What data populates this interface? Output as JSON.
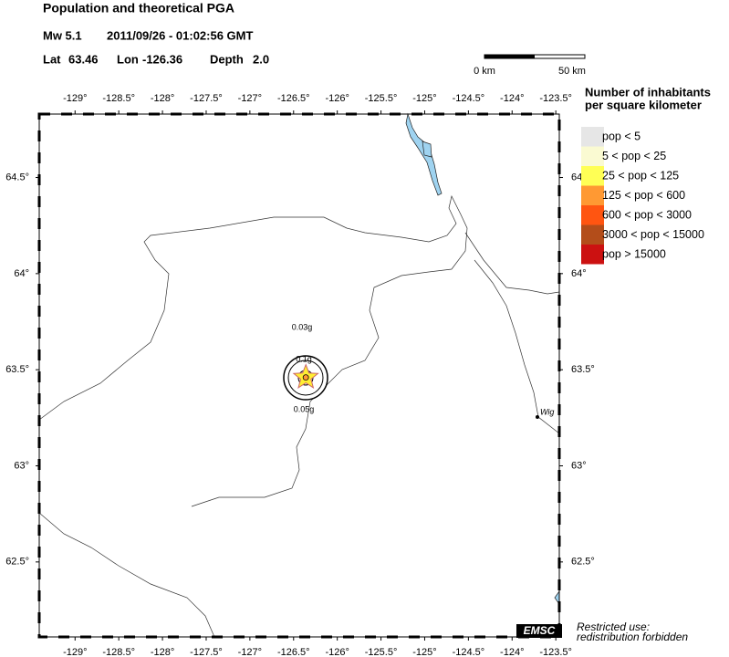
{
  "header": {
    "title": "Population and theoretical PGA",
    "magnitude": "Mw 5.1",
    "datetime": "2011/09/26 - 01:02:56 GMT"
  },
  "epicenter": {
    "lat_label": "Lat",
    "lat": 63.46,
    "lon_label": "Lon",
    "lon": -126.36,
    "depth_label": "Depth",
    "depth": "2.0"
  },
  "scale_bar": {
    "start": "0 km",
    "end": "50 km"
  },
  "map": {
    "xlim": [
      -129.41,
      -123.46
    ],
    "ylim": [
      62.11,
      64.83
    ],
    "xticks": [
      {
        "value": -129,
        "label": "-129°"
      },
      {
        "value": -128.5,
        "label": "-128.5°"
      },
      {
        "value": -128,
        "label": "-128°"
      },
      {
        "value": -127.5,
        "label": "-127.5°"
      },
      {
        "value": -127,
        "label": "-127°"
      },
      {
        "value": -126.5,
        "label": "-126.5°"
      },
      {
        "value": -126,
        "label": "-126°"
      },
      {
        "value": -125.5,
        "label": "-125.5°"
      },
      {
        "value": -125,
        "label": "-125°"
      },
      {
        "value": -124.5,
        "label": "-124.5°"
      },
      {
        "value": -124,
        "label": "-124°"
      },
      {
        "value": -123.5,
        "label": "-123.5°"
      }
    ],
    "yticks": [
      {
        "value": 64.5,
        "label": "64.5°"
      },
      {
        "value": 64,
        "label": "64°"
      },
      {
        "value": 63.5,
        "label": "63.5°"
      },
      {
        "value": 63,
        "label": "63°"
      },
      {
        "value": 62.5,
        "label": "62.5°"
      }
    ],
    "pga_labels": [
      "0.03g",
      "0.1g",
      "0.05g"
    ],
    "town": "Wig"
  },
  "legend": {
    "title_line1": "Number of inhabitants",
    "title_line2": "per square kilometer",
    "items": [
      {
        "label": "pop < 5",
        "color": "#e6e6e6"
      },
      {
        "label": "5 < pop < 25",
        "color": "#fafad2"
      },
      {
        "label": "25 < pop < 125",
        "color": "#ffff55"
      },
      {
        "label": "125 < pop < 600",
        "color": "#ff9933"
      },
      {
        "label": "600 < pop < 3000",
        "color": "#ff5511"
      },
      {
        "label": "3000 < pop < 15000",
        "color": "#b34d1a"
      },
      {
        "label": "pop > 15000",
        "color": "#cc1111"
      }
    ]
  },
  "footer": {
    "badge": "EMSC",
    "line1": "Restricted use:",
    "line2": "redistribution forbidden"
  }
}
